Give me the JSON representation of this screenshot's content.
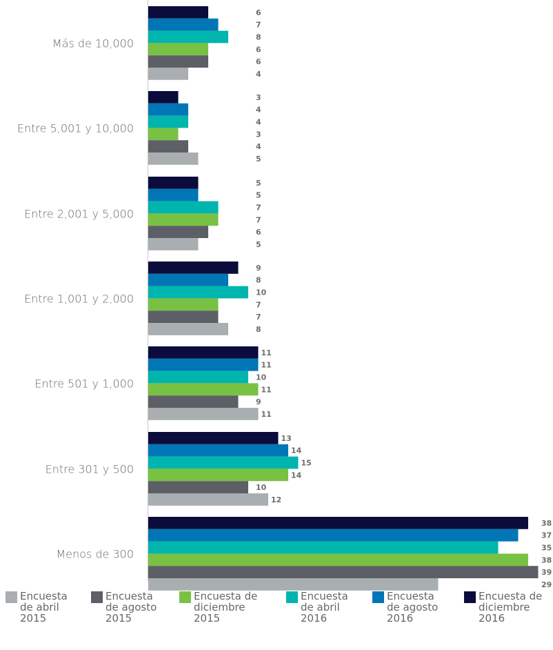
{
  "chart_data": {
    "type": "bar",
    "orientation": "horizontal",
    "categories": [
      "Más de 10,000",
      "Entre 5,001 y 10,000",
      "Entre 2,001 y 5,000",
      "Entre 1,001 y 2,000",
      "Entre 501 y 1,000",
      "Entre 301 y 500",
      "Menos de 300"
    ],
    "series": [
      {
        "name": "Encuesta de diciembre 2016",
        "label": "Encuesta de\ndiciembre\n2016",
        "color": "#0b0c3b",
        "values": [
          6,
          3,
          5,
          9,
          11,
          13,
          38
        ]
      },
      {
        "name": "Encuesta de agosto 2016",
        "label": "Encuesta\nde agosto\n2016",
        "color": "#0076b6",
        "values": [
          7,
          4,
          5,
          8,
          11,
          14,
          37
        ]
      },
      {
        "name": "Encuesta de abril 2016",
        "label": "Encuesta\nde abril\n2016",
        "color": "#00b5ad",
        "values": [
          8,
          4,
          7,
          10,
          10,
          15,
          35
        ]
      },
      {
        "name": "Encuesta de diciembre 2015",
        "label": "Encuesta de\ndiciembre\n2015",
        "color": "#79c142",
        "values": [
          6,
          3,
          7,
          7,
          11,
          14,
          38
        ]
      },
      {
        "name": "Encuesta de agosto 2015",
        "label": "Encuesta\nde agosto\n2015",
        "color": "#5d5f66",
        "values": [
          6,
          4,
          6,
          7,
          9,
          10,
          39
        ]
      },
      {
        "name": "Encuesta de abril 2015",
        "label": "Encuesta\nde abril\n2015",
        "color": "#a9aeb0",
        "values": [
          4,
          5,
          5,
          8,
          11,
          12,
          29
        ]
      }
    ],
    "legend_order": [
      5,
      4,
      3,
      2,
      1,
      0
    ],
    "xlim": [
      0,
      39
    ],
    "grid": false,
    "legend_position": "bottom"
  }
}
